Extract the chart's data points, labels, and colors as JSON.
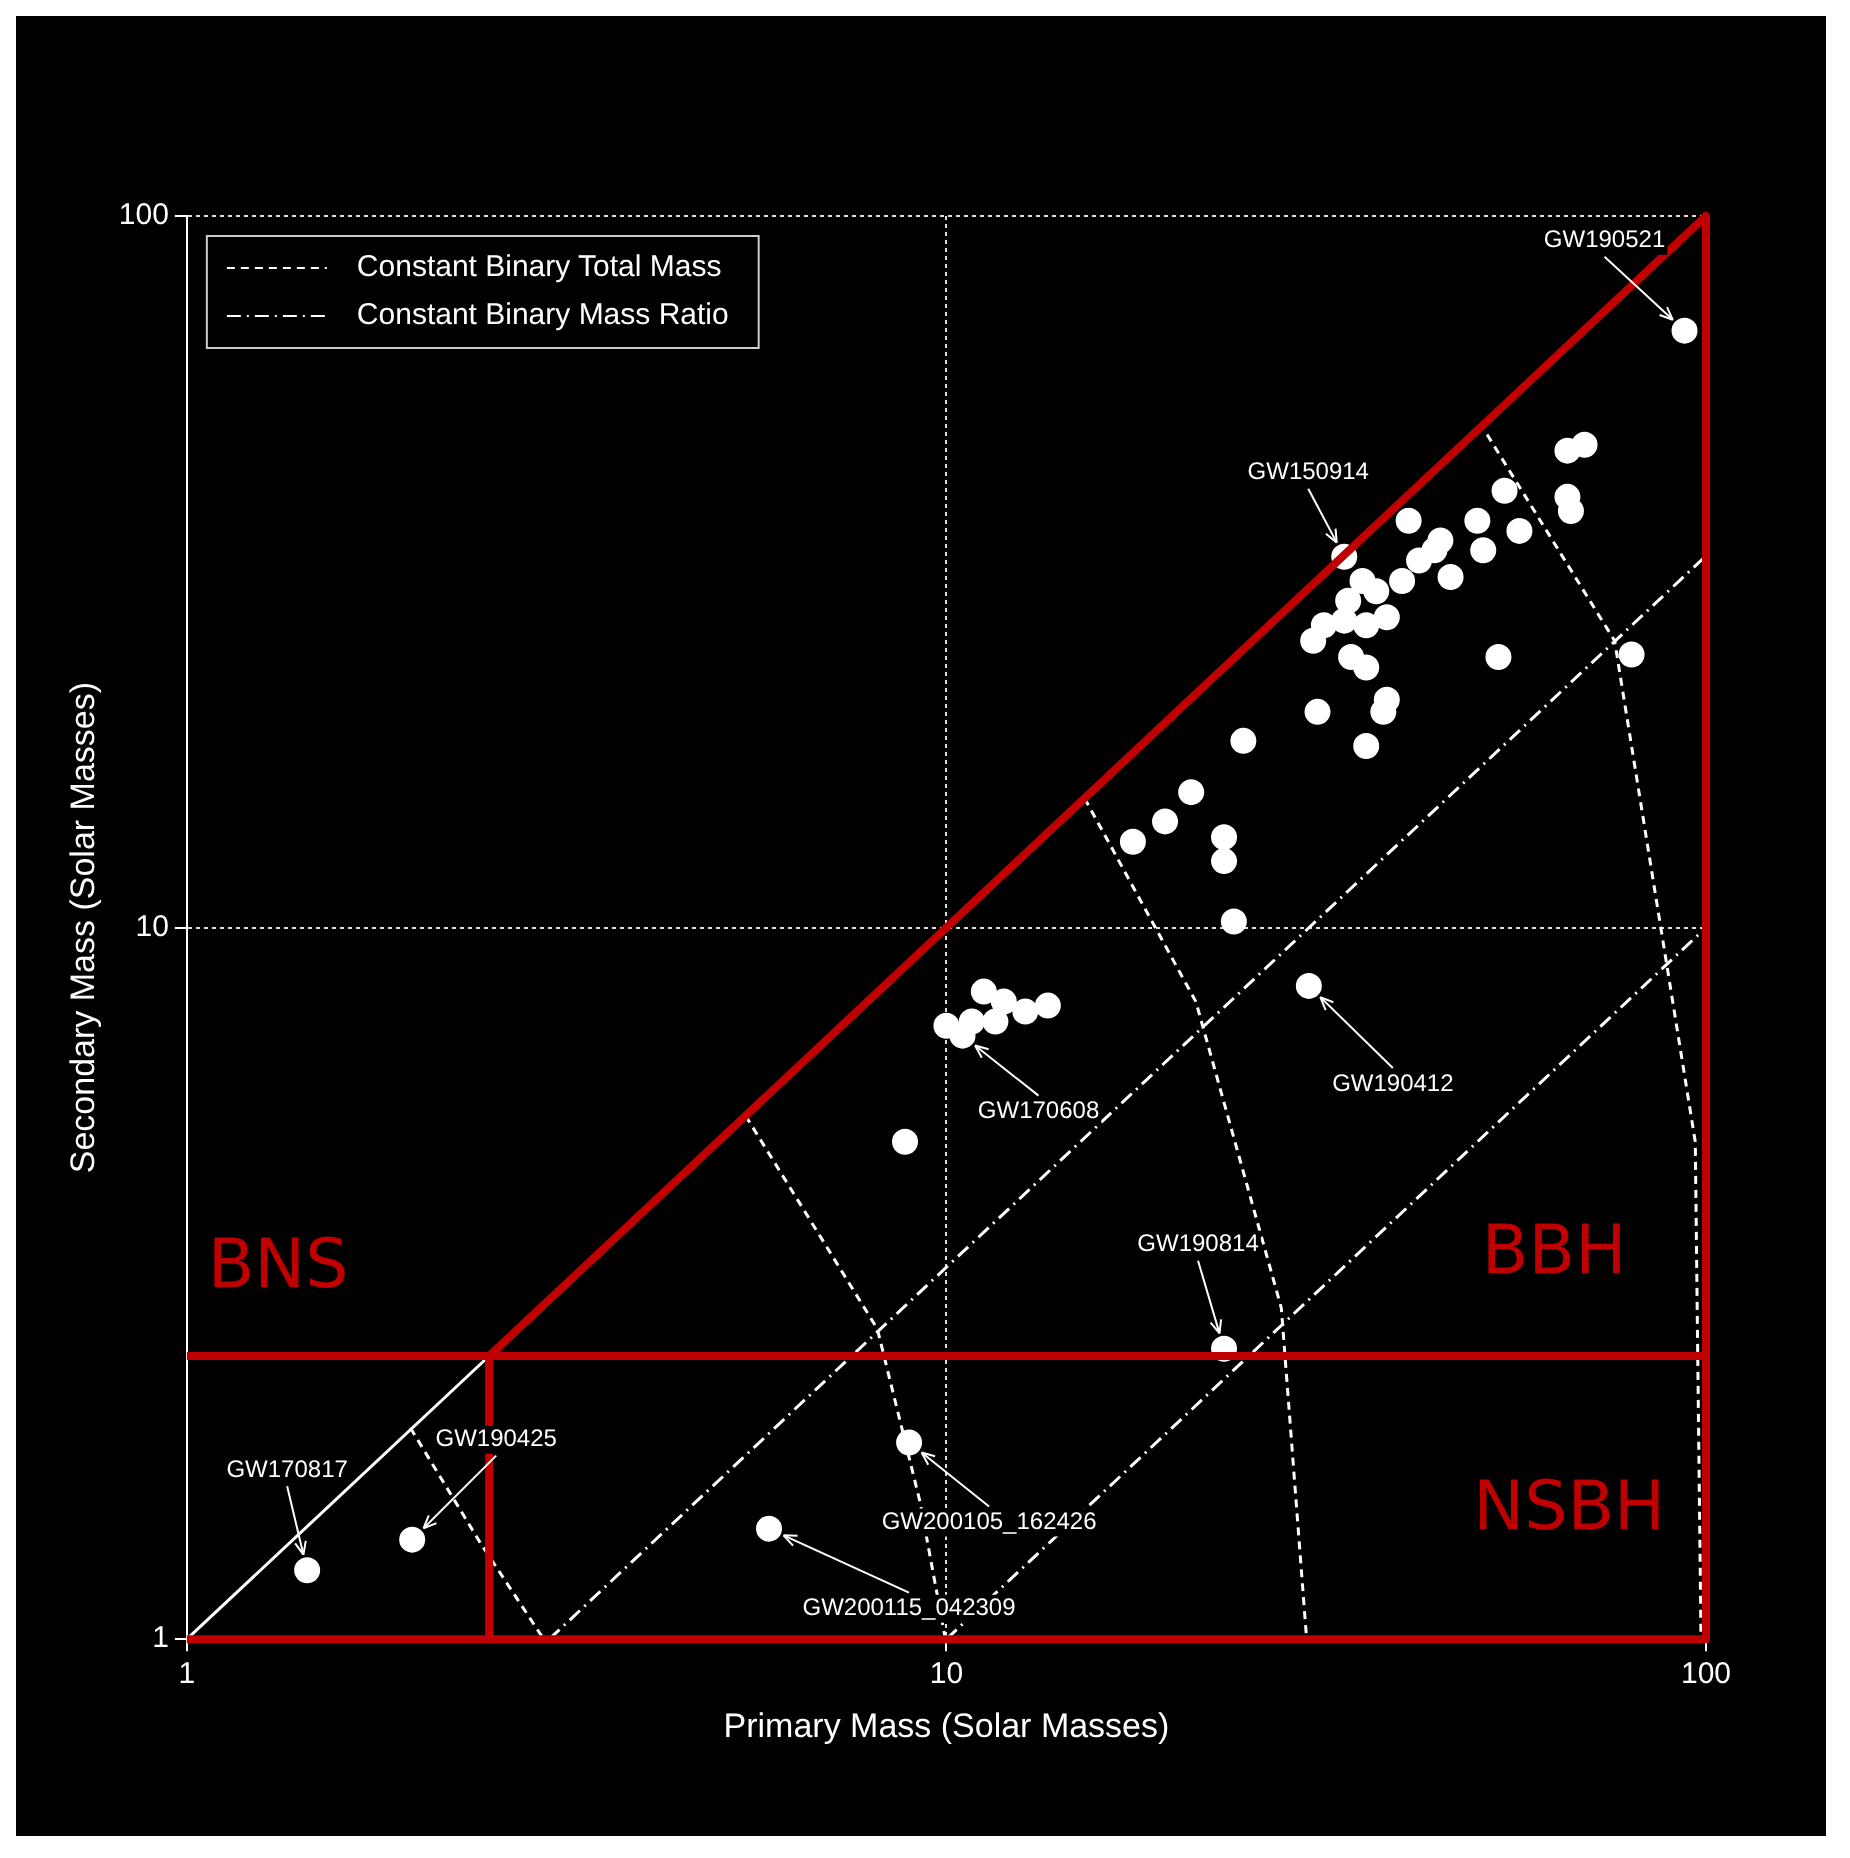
{
  "chart_data": {
    "type": "scatter",
    "xlabel": "Primary Mass (Solar Masses)",
    "ylabel": "Secondary Mass (Solar Masses)",
    "log": "xy",
    "xlim": [
      1,
      100
    ],
    "ylim": [
      1,
      100
    ],
    "xticks": [
      1,
      10,
      100
    ],
    "yticks": [
      1,
      10,
      100
    ],
    "grid": true,
    "legend": "top left",
    "marker": "circle",
    "series": [
      {
        "color": "#ffffff",
        "x": [
          93.7,
          33.4,
          10.5,
          30.0,
          23.2,
          8.93,
          5.84,
          1.98,
          1.44,
          8.82,
          17.6,
          19.4,
          21.0,
          23.2,
          23.2,
          23.9,
          24.6,
          30.8,
          37.6,
          35.7,
          38.0,
          30.4,
          31.4,
          33.8,
          35.3,
          36.8,
          38.0,
          35.7,
          39.8,
          41.9,
          43.9,
          46.1,
          50.9,
          50.0,
          54.3,
          56.8,
          53.3,
          40.6,
          44.7,
          65.7,
          69.2,
          65.7,
          66.4,
          79.8,
          35.7,
          34.1,
          33.4,
          11.6,
          11.9,
          12.7,
          13.6,
          10.8,
          10.0,
          11.2
        ],
        "values": [
          69,
          33.2,
          7.05,
          8.28,
          2.56,
          1.89,
          1.43,
          1.38,
          1.25,
          5.0,
          13.2,
          14.1,
          15.5,
          13.4,
          12.4,
          10.2,
          18.3,
          20.1,
          20.1,
          18.0,
          20.9,
          25.3,
          26.6,
          28.8,
          30.7,
          29.7,
          27.3,
          26.6,
          30.7,
          32.8,
          33.9,
          31.1,
          33.9,
          37.3,
          41.1,
          36.1,
          24.0,
          37.3,
          35.0,
          46.8,
          47.7,
          40.3,
          38.5,
          24.2,
          23.2,
          24.0,
          27.0,
          7.38,
          7.87,
          7.62,
          7.77,
          7.38,
          7.28,
          8.13
        ]
      },
      {
        "type": "line",
        "name": "Constant Binary Total Mass",
        "color": "#ffffff",
        "line_style": "dashed",
        "marker": "none",
        "x": [
          1.97,
          2.43,
          2.95,
          null,
          5.44,
          8.11,
          9.23,
          9.97,
          null,
          15.2,
          21.3,
          27.6,
          29.8,
          null,
          51.5,
          75.8,
          96.8,
          98.5
        ],
        "values": [
          1.98,
          1.37,
          1.0,
          null,
          5.44,
          2.73,
          1.56,
          1.0,
          null,
          15.2,
          7.87,
          2.92,
          1.0,
          null,
          49.3,
          25.3,
          5.0,
          1.0
        ]
      },
      {
        "type": "line",
        "name": "Constant Binary Mass Ratio",
        "color": "#ffffff",
        "line_style": "dotted",
        "marker": "none",
        "x": [
          3,
          100,
          null,
          10,
          100
        ],
        "values": [
          1,
          33.3,
          null,
          1,
          10
        ]
      },
      {
        "type": "line",
        "color": "#ffffff",
        "line_style": "solid",
        "marker": "none",
        "x": [
          1,
          2.5
        ],
        "values": [
          1,
          2.5
        ]
      },
      {
        "type": "line",
        "color": "#c00000",
        "line_style": "solid",
        "marker": "none",
        "x": [
          2.5,
          2.5,
          100,
          100,
          1,
          null,
          1,
          100
        ],
        "values": [
          1,
          2.5,
          100,
          1,
          1,
          null,
          2.5,
          2.5
        ]
      }
    ],
    "annotations": [
      {
        "text": "GW190521",
        "x": 93.7,
        "y": 69
      },
      {
        "text": "GW150914",
        "x": 33.4,
        "y": 33.2
      },
      {
        "text": "GW170608",
        "x": 10.5,
        "y": 7.05
      },
      {
        "text": "GW190412",
        "x": 30.0,
        "y": 8.28
      },
      {
        "text": "GW190814",
        "x": 23.2,
        "y": 2.56
      },
      {
        "text": "GW200105_162426",
        "x": 8.93,
        "y": 1.89
      },
      {
        "text": "GW200115_042309",
        "x": 5.84,
        "y": 1.43
      },
      {
        "text": "GW190425",
        "x": 1.98,
        "y": 1.38
      },
      {
        "text": "GW170817",
        "x": 1.44,
        "y": 1.25
      },
      "BNS",
      "BBH",
      "NSBH"
    ]
  }
}
